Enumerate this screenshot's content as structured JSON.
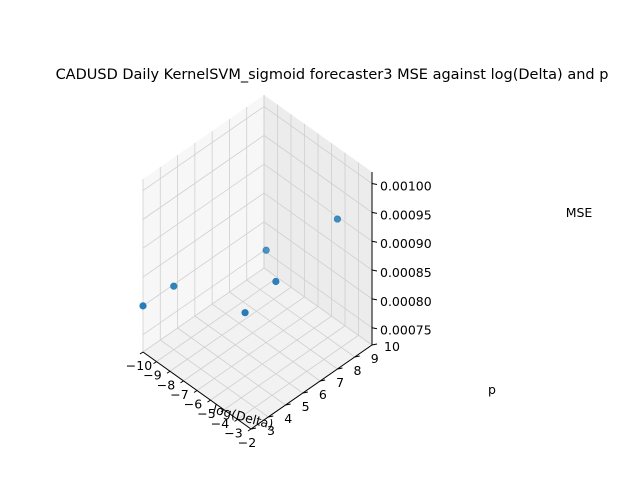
{
  "chart_data": {
    "type": "scatter",
    "title": "CADUSD Daily KernelSVM_sigmoid forecaster3 MSE against log(Delta) and p",
    "xlabel": "log(Delta)",
    "ylabel": "p",
    "zlabel": "MSE",
    "xlim": [
      -10,
      -2
    ],
    "ylim": [
      3,
      10
    ],
    "zlim": [
      0.00072,
      0.00102
    ],
    "x_ticks": [
      "−10",
      "−9",
      "−8",
      "−7",
      "−6",
      "−5",
      "−4",
      "−3",
      "−2"
    ],
    "y_ticks": [
      "3",
      "4",
      "5",
      "6",
      "7",
      "8",
      "9",
      "10"
    ],
    "z_ticks": [
      "0.00075",
      "0.00080",
      "0.00085",
      "0.00090",
      "0.00095",
      "0.00100"
    ],
    "grid": true,
    "point_color": "#1f77b4",
    "points": [
      {
        "x": -10,
        "y": 3,
        "z": 0.0008
      },
      {
        "x": -9,
        "y": 4,
        "z": 0.00083
      },
      {
        "x": -6,
        "y": 7,
        "z": 0.00088
      },
      {
        "x": -5,
        "y": 5,
        "z": 0.00083
      },
      {
        "x": -4,
        "y": 6,
        "z": 0.00088
      },
      {
        "x": -2,
        "y": 8,
        "z": 0.00098
      }
    ]
  }
}
